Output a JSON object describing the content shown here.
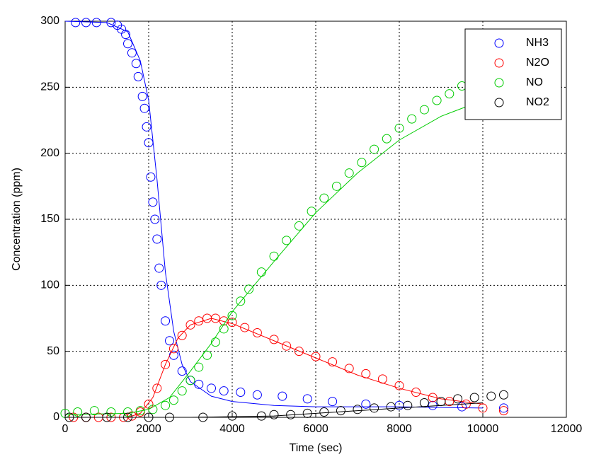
{
  "chart_data": {
    "type": "scatter",
    "xlabel": "Time (sec)",
    "ylabel": "Concentration (ppm)",
    "xlim": [
      0,
      12000
    ],
    "xticks": [
      0,
      2000,
      4000,
      6000,
      8000,
      10000,
      12000
    ],
    "ylim": [
      0,
      300
    ],
    "yticks": [
      0,
      50,
      100,
      150,
      200,
      250,
      300
    ],
    "grid": true,
    "legend": "upper right",
    "series": [
      {
        "name": "NH3",
        "color": "#0000ff",
        "x": [
          250,
          500,
          750,
          1100,
          1250,
          1350,
          1450,
          1500,
          1600,
          1700,
          1750,
          1850,
          1900,
          1950,
          2000,
          2050,
          2100,
          2150,
          2200,
          2250,
          2300,
          2400,
          2500,
          2600,
          2800,
          3000,
          3200,
          3500,
          3800,
          4200,
          4600,
          5200,
          5800,
          6400,
          7200,
          8000,
          8800,
          9500,
          10500
        ],
        "values": [
          299,
          299,
          299,
          299,
          297,
          294,
          290,
          283,
          276,
          268,
          258,
          243,
          234,
          220,
          208,
          182,
          163,
          150,
          135,
          113,
          100,
          73,
          58,
          47,
          35,
          28,
          25,
          22,
          20,
          19,
          17,
          16,
          14,
          12,
          10,
          9,
          9,
          8,
          7
        ],
        "fit_x": [
          0,
          1000,
          1500,
          1800,
          2000,
          2200,
          2400,
          2600,
          2800,
          3000,
          3500,
          4000,
          5000,
          6000,
          8000,
          10000
        ],
        "fit_values": [
          300,
          299,
          292,
          270,
          240,
          180,
          110,
          65,
          40,
          27,
          16,
          12,
          9,
          8,
          8,
          7
        ]
      },
      {
        "name": "N2O",
        "color": "#ff0000",
        "x": [
          200,
          500,
          800,
          1100,
          1400,
          1600,
          1800,
          2000,
          2200,
          2400,
          2600,
          2800,
          3000,
          3200,
          3400,
          3600,
          3800,
          4000,
          4300,
          4600,
          5000,
          5300,
          5600,
          6000,
          6400,
          6800,
          7200,
          7600,
          8000,
          8400,
          8800,
          9200,
          9600,
          10000,
          10500
        ],
        "values": [
          0,
          0,
          0,
          0,
          0,
          1,
          4,
          10,
          22,
          40,
          52,
          62,
          70,
          73,
          75,
          75,
          73,
          72,
          68,
          64,
          59,
          54,
          50,
          46,
          42,
          37,
          33,
          29,
          24,
          19,
          15,
          12,
          10,
          7,
          5
        ],
        "fit_x": [
          0,
          1500,
          1800,
          2100,
          2400,
          2700,
          3000,
          3500,
          4000,
          5000,
          6000,
          7000,
          8000,
          9000,
          10000
        ],
        "fit_values": [
          0,
          0,
          3,
          15,
          40,
          60,
          70,
          75,
          71,
          58,
          45,
          32,
          22,
          14,
          10
        ]
      },
      {
        "name": "NO",
        "color": "#00cc00",
        "x": [
          0,
          300,
          700,
          1100,
          1500,
          1800,
          2100,
          2400,
          2600,
          2800,
          3000,
          3200,
          3400,
          3600,
          3800,
          4000,
          4200,
          4400,
          4700,
          5000,
          5300,
          5600,
          5900,
          6200,
          6500,
          6800,
          7100,
          7400,
          7700,
          8000,
          8300,
          8600,
          8900,
          9200,
          9500
        ],
        "values": [
          3,
          4,
          5,
          4,
          4,
          5,
          6,
          9,
          13,
          20,
          28,
          38,
          47,
          57,
          67,
          77,
          88,
          97,
          110,
          122,
          134,
          145,
          156,
          166,
          175,
          185,
          193,
          203,
          211,
          219,
          226,
          233,
          240,
          245,
          251
        ],
        "fit_x": [
          0,
          1500,
          2000,
          2500,
          3000,
          3500,
          4000,
          5000,
          6000,
          7000,
          8000,
          9000,
          10000
        ],
        "fit_values": [
          2,
          3,
          6,
          15,
          35,
          56,
          80,
          118,
          155,
          185,
          210,
          228,
          240
        ]
      },
      {
        "name": "NO2",
        "color": "#000000",
        "x": [
          100,
          500,
          1000,
          1500,
          2000,
          2500,
          3300,
          4000,
          4700,
          5000,
          5400,
          5800,
          6200,
          6600,
          7000,
          7400,
          7800,
          8200,
          8600,
          9000,
          9400,
          9800,
          10200,
          10500
        ],
        "values": [
          0,
          0,
          0,
          0,
          0,
          0,
          0,
          1,
          1,
          2,
          2,
          3,
          4,
          5,
          6,
          7,
          8,
          9,
          11,
          12,
          14,
          15,
          16,
          17
        ],
        "fit_x": [
          0,
          3000,
          5000,
          6000,
          7000,
          8000,
          9000,
          10000
        ],
        "fit_values": [
          0,
          0,
          1,
          3,
          5,
          7,
          9,
          11
        ]
      }
    ]
  }
}
